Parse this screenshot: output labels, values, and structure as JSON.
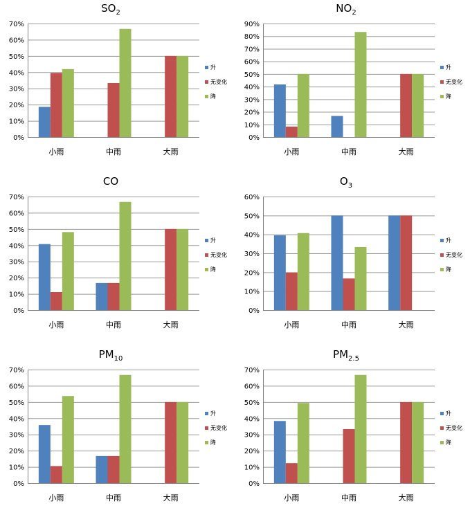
{
  "colors": {
    "series": [
      "#4F81BD",
      "#C0504D",
      "#9BBB59"
    ],
    "grid": "#9a9a9a",
    "axis": "#808080"
  },
  "chart_data": [
    {
      "type": "bar",
      "title": "SO",
      "title_sub": "2",
      "categories": [
        "小雨",
        "中雨",
        "大雨"
      ],
      "series": [
        {
          "name": "升",
          "values": [
            18.6,
            0,
            0
          ]
        },
        {
          "name": "无变化",
          "values": [
            39.5,
            33.3,
            50
          ]
        },
        {
          "name": "降",
          "values": [
            41.9,
            66.7,
            50
          ]
        }
      ],
      "ylim": [
        0,
        70
      ],
      "yticks": [
        0,
        10,
        20,
        30,
        40,
        50,
        60,
        70
      ],
      "ytick_labels": [
        "0%",
        "10%",
        "20%",
        "30%",
        "40%",
        "50%",
        "60%",
        "70%"
      ],
      "grid": true,
      "legend": "right"
    },
    {
      "type": "bar",
      "title": "NO",
      "title_sub": "2",
      "categories": [
        "小雨",
        "中雨",
        "大雨"
      ],
      "series": [
        {
          "name": "升",
          "values": [
            41.7,
            16.7,
            0
          ]
        },
        {
          "name": "无变化",
          "values": [
            8.3,
            0,
            50
          ]
        },
        {
          "name": "降",
          "values": [
            50,
            83.3,
            50
          ]
        }
      ],
      "ylim": [
        0,
        90
      ],
      "yticks": [
        0,
        10,
        20,
        30,
        40,
        50,
        60,
        70,
        80,
        90
      ],
      "ytick_labels": [
        "0%",
        "10%",
        "20%",
        "30%",
        "40%",
        "50%",
        "60%",
        "70%",
        "80%",
        "90%"
      ],
      "grid": true,
      "legend": "right"
    },
    {
      "type": "bar",
      "title": "CO",
      "title_sub": "",
      "categories": [
        "小雨",
        "中雨",
        "大雨"
      ],
      "series": [
        {
          "name": "升",
          "values": [
            40.7,
            16.7,
            0
          ]
        },
        {
          "name": "无变化",
          "values": [
            11.1,
            16.7,
            50
          ]
        },
        {
          "name": "降",
          "values": [
            48.1,
            66.7,
            50
          ]
        }
      ],
      "ylim": [
        0,
        70
      ],
      "yticks": [
        0,
        10,
        20,
        30,
        40,
        50,
        60,
        70
      ],
      "ytick_labels": [
        "0%",
        "10%",
        "20%",
        "30%",
        "40%",
        "50%",
        "60%",
        "70%"
      ],
      "grid": true,
      "legend": "right"
    },
    {
      "type": "bar",
      "title": "O",
      "title_sub": "3",
      "categories": [
        "小雨",
        "中雨",
        "大雨"
      ],
      "series": [
        {
          "name": "升",
          "values": [
            39.5,
            50,
            50
          ]
        },
        {
          "name": "无变化",
          "values": [
            19.8,
            16.7,
            50
          ]
        },
        {
          "name": "降",
          "values": [
            40.7,
            33.3,
            0
          ]
        }
      ],
      "ylim": [
        0,
        60
      ],
      "yticks": [
        0,
        10,
        20,
        30,
        40,
        50,
        60
      ],
      "ytick_labels": [
        "0%",
        "10%",
        "20%",
        "30%",
        "40%",
        "50%",
        "60%"
      ],
      "grid": true,
      "legend": "right"
    },
    {
      "type": "bar",
      "title": "PM",
      "title_sub": "10",
      "categories": [
        "小雨",
        "中雨",
        "大雨"
      ],
      "series": [
        {
          "name": "升",
          "values": [
            35.8,
            16.7,
            0
          ]
        },
        {
          "name": "无变化",
          "values": [
            10.5,
            16.7,
            50
          ]
        },
        {
          "name": "降",
          "values": [
            53.7,
            66.7,
            50
          ]
        }
      ],
      "ylim": [
        0,
        70
      ],
      "yticks": [
        0,
        10,
        20,
        30,
        40,
        50,
        60,
        70
      ],
      "ytick_labels": [
        "0%",
        "10%",
        "20%",
        "30%",
        "40%",
        "50%",
        "60%",
        "70%"
      ],
      "grid": true,
      "legend": "right"
    },
    {
      "type": "bar",
      "title": "PM",
      "title_sub": "2.5",
      "categories": [
        "小雨",
        "中雨",
        "大雨"
      ],
      "series": [
        {
          "name": "升",
          "values": [
            38.3,
            0,
            0
          ]
        },
        {
          "name": "无变化",
          "values": [
            12.3,
            33.3,
            50
          ]
        },
        {
          "name": "降",
          "values": [
            49.4,
            66.7,
            50
          ]
        }
      ],
      "ylim": [
        0,
        70
      ],
      "yticks": [
        0,
        10,
        20,
        30,
        40,
        50,
        60,
        70
      ],
      "ytick_labels": [
        "0%",
        "10%",
        "20%",
        "30%",
        "40%",
        "50%",
        "60%",
        "70%"
      ],
      "grid": true,
      "legend": "right"
    }
  ]
}
